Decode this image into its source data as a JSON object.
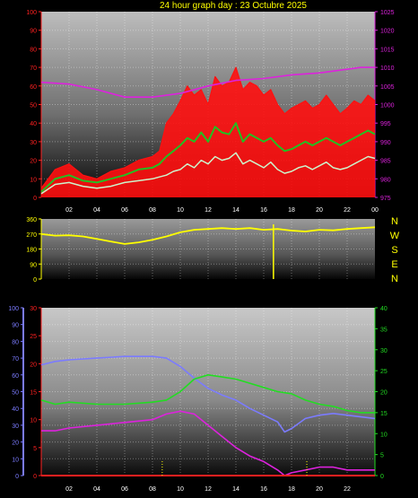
{
  "title": "24 hour graph day : 23 Octubre 2025",
  "colors": {
    "wind_gust": "#ff1010",
    "wind_avg": "#22c022",
    "wind_speed": "#ccf5cc",
    "pressure": "#dd22dd",
    "direction": "#ffff00",
    "humidity": "#7b7bff",
    "temp": "#22dd22",
    "dewpoint": "#dd22dd",
    "rain": "#ff2020"
  },
  "chart_data": [
    {
      "type": "line",
      "name": "wind-pressure",
      "x_ticks": [
        "02",
        "04",
        "06",
        "08",
        "10",
        "12",
        "14",
        "16",
        "18",
        "20",
        "22",
        "00"
      ],
      "y_left_ticks": [
        "0",
        "10",
        "20",
        "30",
        "40",
        "50",
        "60",
        "70",
        "80",
        "90",
        "100"
      ],
      "y_left_range": [
        0,
        100
      ],
      "y_right_ticks": [
        "975",
        "980",
        "985",
        "990",
        "995",
        "1000",
        "1005",
        "1010",
        "1015",
        "1020",
        "1025"
      ],
      "y_right_range": [
        975,
        1025
      ],
      "x_range": [
        0,
        24
      ],
      "series": [
        {
          "key": "wind_gust",
          "x": [
            0,
            1,
            2,
            3,
            4,
            5,
            6,
            7,
            8,
            8.5,
            9,
            9.5,
            10,
            10.5,
            11,
            11.5,
            12,
            12.5,
            13,
            13.5,
            14,
            14.5,
            15,
            15.5,
            16,
            16.5,
            17,
            17.5,
            18,
            18.5,
            19,
            19.5,
            20,
            20.5,
            21,
            21.5,
            22,
            22.5,
            23,
            23.5,
            24
          ],
          "y": [
            5,
            15,
            18,
            12,
            10,
            14,
            16,
            20,
            22,
            25,
            40,
            45,
            52,
            60,
            55,
            58,
            50,
            65,
            60,
            62,
            70,
            58,
            62,
            60,
            55,
            58,
            50,
            45,
            48,
            50,
            52,
            48,
            50,
            55,
            50,
            45,
            48,
            52,
            50,
            55,
            52
          ]
        },
        {
          "key": "wind_avg",
          "x": [
            0,
            1,
            2,
            3,
            4,
            5,
            6,
            7,
            8,
            8.5,
            9,
            9.5,
            10,
            10.5,
            11,
            11.5,
            12,
            12.5,
            13,
            13.5,
            14,
            14.5,
            15,
            15.5,
            16,
            16.5,
            17,
            17.5,
            18,
            18.5,
            19,
            19.5,
            20,
            20.5,
            21,
            21.5,
            22,
            22.5,
            23,
            23.5,
            24
          ],
          "y": [
            3,
            10,
            12,
            9,
            8,
            10,
            12,
            15,
            16,
            18,
            22,
            25,
            28,
            32,
            30,
            35,
            30,
            38,
            35,
            34,
            40,
            30,
            34,
            32,
            30,
            32,
            28,
            25,
            26,
            28,
            30,
            28,
            30,
            32,
            30,
            28,
            30,
            32,
            34,
            36,
            34
          ]
        },
        {
          "key": "wind_speed",
          "x": [
            0,
            1,
            2,
            3,
            4,
            5,
            6,
            7,
            8,
            8.5,
            9,
            9.5,
            10,
            10.5,
            11,
            11.5,
            12,
            12.5,
            13,
            13.5,
            14,
            14.5,
            15,
            15.5,
            16,
            16.5,
            17,
            17.5,
            18,
            18.5,
            19,
            19.5,
            20,
            20.5,
            21,
            21.5,
            22,
            22.5,
            23,
            23.5,
            24
          ],
          "y": [
            2,
            7,
            8,
            6,
            5,
            6,
            8,
            9,
            10,
            11,
            12,
            14,
            15,
            18,
            16,
            20,
            18,
            22,
            20,
            21,
            24,
            18,
            20,
            18,
            16,
            19,
            15,
            13,
            14,
            16,
            17,
            15,
            17,
            19,
            16,
            15,
            16,
            18,
            20,
            22,
            21
          ]
        },
        {
          "key": "pressure",
          "axis": "right",
          "x": [
            0,
            2,
            4,
            6,
            8,
            10,
            12,
            14,
            16,
            18,
            20,
            22,
            23,
            24
          ],
          "y": [
            1006,
            1005.5,
            1004,
            1002,
            1002,
            1003,
            1005,
            1006.5,
            1007,
            1008,
            1008.5,
            1009.5,
            1010,
            1010
          ]
        }
      ]
    },
    {
      "type": "line",
      "name": "wind-direction",
      "x_range": [
        0,
        24
      ],
      "y_ticks": [
        "0",
        "90",
        "180",
        "270",
        "360"
      ],
      "y_range": [
        0,
        360
      ],
      "dir_labels": [
        "N",
        "W",
        "S",
        "E",
        "N"
      ],
      "series": [
        {
          "key": "direction",
          "x": [
            0,
            1,
            2,
            3,
            4,
            5,
            6,
            7,
            8,
            9,
            10,
            11,
            12,
            13,
            14,
            15,
            16,
            17,
            18,
            19,
            20,
            21,
            22,
            23,
            24
          ],
          "y": [
            270,
            260,
            262,
            255,
            240,
            225,
            210,
            220,
            235,
            255,
            280,
            295,
            300,
            305,
            300,
            305,
            295,
            300,
            290,
            285,
            295,
            292,
            300,
            305,
            310
          ]
        }
      ]
    },
    {
      "type": "line",
      "name": "temp-humidity",
      "x_ticks": [
        "02",
        "04",
        "06",
        "08",
        "10",
        "12",
        "14",
        "16",
        "18",
        "20",
        "22"
      ],
      "x_range": [
        0,
        24
      ],
      "y_humidity_ticks": [
        "0",
        "10",
        "20",
        "30",
        "40",
        "50",
        "60",
        "70",
        "80",
        "90",
        "100"
      ],
      "y_humidity_range": [
        0,
        100
      ],
      "y_left_ticks": [
        "0",
        "5",
        "10",
        "15",
        "20",
        "25",
        "30"
      ],
      "y_left_range": [
        0,
        30
      ],
      "y_right_ticks": [
        "0",
        "5",
        "10",
        "15",
        "20",
        "25",
        "30",
        "35",
        "40"
      ],
      "y_right_range": [
        0,
        40
      ],
      "series": [
        {
          "key": "humidity",
          "axis": "humidity",
          "x": [
            0,
            1,
            2,
            4,
            6,
            8,
            9,
            10,
            11,
            12,
            13,
            14,
            15,
            16,
            17,
            17.5,
            18,
            19,
            20,
            21,
            22,
            23,
            24
          ],
          "y": [
            66,
            68,
            69,
            70,
            71,
            71,
            70,
            65,
            58,
            52,
            48,
            45,
            40,
            36,
            32,
            26,
            28,
            34,
            36,
            37,
            36,
            35,
            34
          ]
        },
        {
          "key": "temp",
          "axis": "right",
          "x": [
            0,
            1,
            2,
            4,
            6,
            8,
            9,
            10,
            11,
            12,
            13,
            14,
            15,
            16,
            17,
            18,
            19,
            20,
            21,
            22,
            23,
            24
          ],
          "y": [
            18,
            17,
            17.5,
            17,
            17,
            17.5,
            18,
            20,
            23,
            24,
            23.5,
            23,
            22,
            21,
            20,
            19.5,
            18,
            17,
            16.5,
            15.5,
            15,
            15
          ]
        },
        {
          "key": "dewpoint",
          "axis": "left",
          "x": [
            0,
            1,
            2,
            4,
            6,
            8,
            9,
            10,
            11,
            12,
            13,
            14,
            15,
            16,
            17,
            17.5,
            18,
            19,
            20,
            21,
            22,
            23,
            24
          ],
          "y": [
            8,
            8,
            8.5,
            9,
            9.5,
            10,
            11,
            11.5,
            11,
            9,
            7,
            5,
            3.5,
            2.5,
            1,
            0,
            0.5,
            1,
            1.5,
            1.5,
            1,
            1,
            1
          ]
        },
        {
          "key": "rain",
          "axis": "left",
          "x": [
            0,
            24
          ],
          "y": [
            0,
            0
          ]
        }
      ]
    }
  ]
}
